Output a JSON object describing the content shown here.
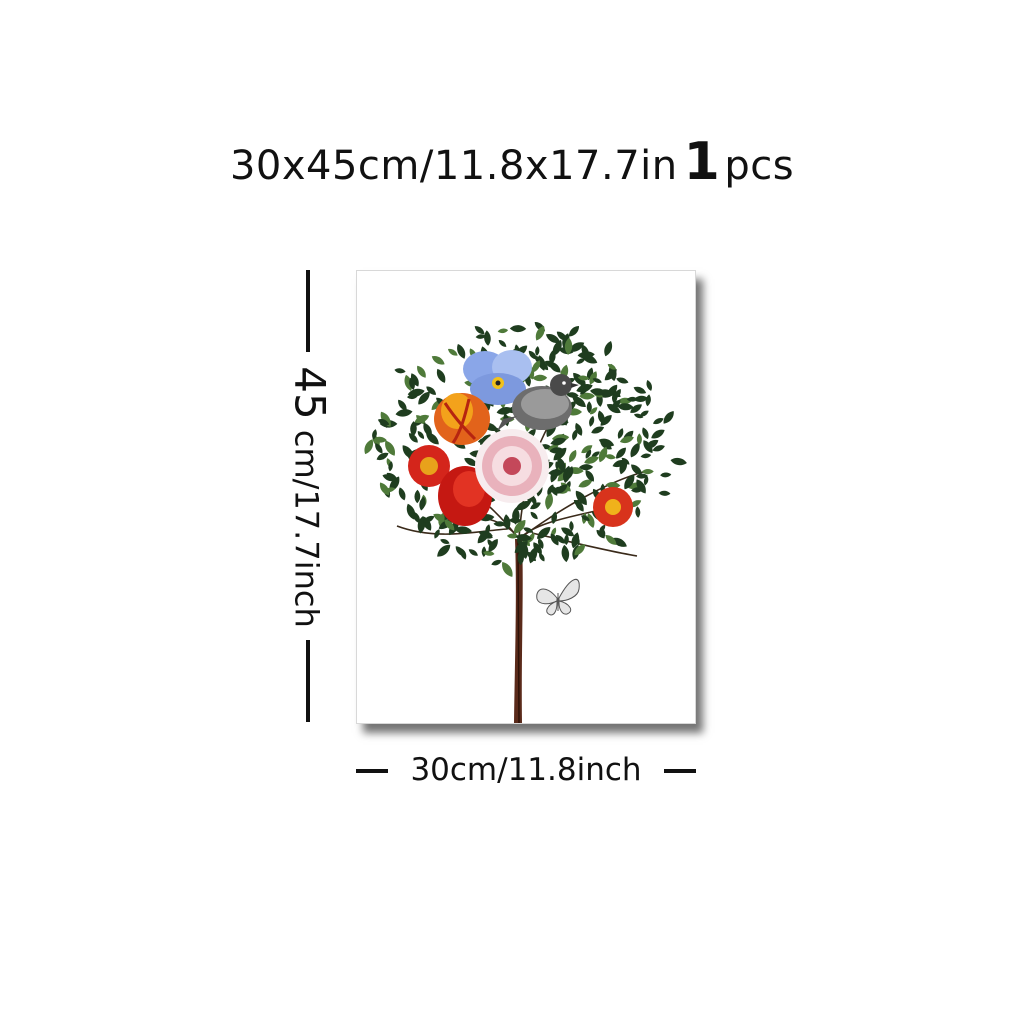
{
  "title": {
    "size_text": "30x45cm/11.8x17.7in",
    "quantity": "1",
    "unit": "pcs"
  },
  "dimensions": {
    "height_number": "45",
    "height_text": "cm/17.7inch",
    "width_text": "30cm/11.8inch"
  },
  "artwork": {
    "subject": "flowering-tree-with-bird-and-butterfly"
  },
  "colors": {
    "leaf": "#1f3d1f",
    "trunk": "#5a2a1a",
    "red_flower": "#d4251b",
    "blue_pansy": "#8aa6e8",
    "orange_flower": "#e2631b"
  }
}
